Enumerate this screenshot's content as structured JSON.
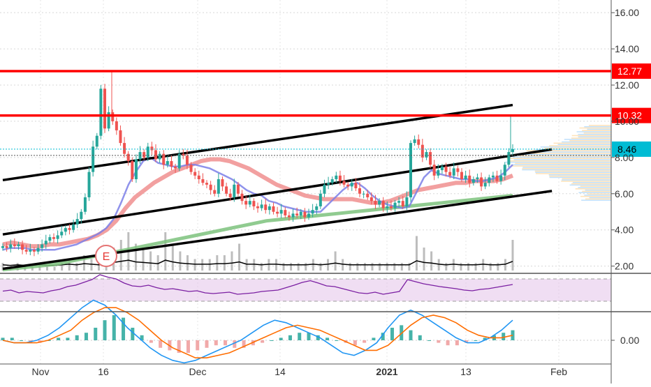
{
  "chart_data": {
    "type": "candlestick",
    "title": "",
    "colors": {
      "up": "#26a69a",
      "down": "#ef5350",
      "resistance": "#ff0000",
      "channel": "#000000",
      "ma_fast": "#7b7fe8",
      "ma_mid": "#f08f8f",
      "ma_slow": "#7dc27d",
      "rsi": "#7b1fa2",
      "rsi_band": "#e1bee7",
      "macd": "#2196f3",
      "signal": "#ff6d00",
      "last_price_tag": "#00bcd4",
      "level_tag": "#ff0000"
    },
    "price_axis": {
      "ticks": [
        "16.00",
        "14.00",
        "12.00",
        "10.00",
        "8.00",
        "6.00",
        "4.00",
        "2.00"
      ],
      "range": [
        1.6,
        16.7
      ]
    },
    "macd_axis": {
      "ticks": [
        "0.00"
      ]
    },
    "x_axis": {
      "labels": [
        "Nov",
        "16",
        "Dec",
        "14",
        "2021",
        "13",
        "Feb"
      ]
    },
    "levels": [
      {
        "label": "12.77",
        "value": 12.77
      },
      {
        "label": "10.32",
        "value": 10.32
      }
    ],
    "last_price": {
      "label": "8.46",
      "value": 8.46
    },
    "earnings_marker": {
      "label": "E",
      "date_index": 23
    },
    "channel_lines": [
      {
        "name": "upper",
        "points": [
          [
            0,
            6.75
          ],
          [
            130,
            10.9
          ]
        ]
      },
      {
        "name": "middle",
        "points": [
          [
            0,
            3.75
          ],
          [
            140,
            8.45
          ]
        ]
      },
      {
        "name": "lower",
        "points": [
          [
            0,
            1.85
          ],
          [
            140,
            6.15
          ]
        ]
      }
    ],
    "candles_close": [
      3.1,
      3.0,
      3.2,
      3.1,
      3.2,
      2.9,
      2.8,
      2.9,
      2.8,
      3.0,
      3.2,
      3.4,
      3.6,
      3.5,
      3.7,
      3.9,
      4.1,
      4.0,
      4.3,
      4.6,
      5.0,
      5.8,
      7.2,
      8.6,
      9.2,
      11.8,
      9.6,
      10.5,
      10.0,
      9.5,
      8.8,
      8.2,
      7.8,
      6.8,
      7.9,
      8.3,
      8.0,
      8.6,
      8.4,
      7.9,
      8.2,
      7.6,
      7.8,
      7.5,
      7.4,
      8.2,
      8.1,
      7.6,
      7.2,
      7.0,
      6.8,
      6.6,
      6.5,
      6.2,
      6.0,
      6.8,
      6.4,
      6.0,
      5.8,
      6.5,
      6.0,
      5.6,
      5.4,
      5.6,
      5.3,
      5.2,
      5.4,
      5.1,
      5.3,
      5.0,
      4.9,
      5.1,
      4.8,
      4.7,
      4.9,
      4.8,
      5.0,
      4.7,
      4.9,
      5.1,
      5.3,
      6.0,
      6.5,
      6.6,
      6.8,
      7.0,
      6.7,
      6.5,
      6.4,
      6.6,
      6.3,
      6.0,
      6.0,
      5.8,
      5.6,
      5.4,
      5.6,
      5.2,
      5.3,
      5.2,
      5.5,
      5.6,
      5.3,
      5.8,
      8.8,
      9.0,
      8.7,
      8.0,
      8.3,
      7.6,
      7.0,
      7.3,
      7.5,
      7.2,
      7.0,
      7.4,
      7.2,
      6.8,
      7.0,
      6.6,
      6.8,
      6.9,
      6.4,
      6.6,
      6.9,
      7.0,
      6.7,
      7.0,
      7.6,
      8.3,
      8.46
    ],
    "ma_fast": [
      2.9,
      3.0,
      3.0,
      3.0,
      2.9,
      2.9,
      2.9,
      2.9,
      3.0,
      3.1,
      3.2,
      3.4,
      3.6,
      3.8,
      4.1,
      4.6,
      5.5,
      6.5,
      7.2,
      7.8,
      8.0,
      7.7,
      7.6,
      7.5,
      7.5,
      7.6,
      7.6,
      7.5,
      7.4,
      7.2,
      7.0,
      6.8,
      6.5,
      6.2,
      6.0,
      5.9,
      5.6,
      5.5,
      5.3,
      5.2,
      5.1,
      5.0,
      5.0,
      5.0,
      5.4,
      5.8,
      6.2,
      6.5,
      6.6,
      6.3,
      5.9,
      5.6,
      5.4,
      5.3,
      5.2,
      5.3,
      6.1,
      6.9,
      7.3,
      7.1,
      7.0,
      6.9,
      6.8,
      6.8,
      6.7,
      6.7,
      6.8,
      6.9,
      7.2,
      7.6
    ],
    "ma_mid": [
      3.2,
      3.3,
      3.2,
      3.1,
      3.1,
      3.2,
      3.2,
      3.3,
      3.4,
      3.5,
      3.7,
      4.0,
      4.5,
      5.2,
      5.8,
      6.2,
      6.6,
      6.9,
      7.2,
      7.4,
      7.6,
      7.8,
      7.9,
      7.9,
      7.8,
      7.6,
      7.4,
      7.1,
      6.8,
      6.5,
      6.3,
      6.1,
      5.9,
      5.8,
      5.7,
      5.7,
      5.7,
      5.7,
      5.6,
      5.5,
      5.5,
      5.6,
      5.8,
      6.0,
      6.2,
      6.3,
      6.4,
      6.5,
      6.6,
      6.6,
      6.7,
      6.7,
      6.7,
      6.8,
      7.0
    ],
    "ma_slow": [
      1.8,
      1.9,
      2.0,
      2.1,
      2.3,
      2.5,
      2.7,
      2.9,
      3.1,
      3.3,
      3.5,
      3.7,
      3.9,
      4.1,
      4.3,
      4.5,
      4.6,
      4.7,
      4.8,
      4.9,
      5.0,
      5.1,
      5.2,
      5.3,
      5.4,
      5.5,
      5.6,
      5.7,
      5.8,
      5.9
    ],
    "volume": [
      0.2,
      0.1,
      0.2,
      0.1,
      0.1,
      0.2,
      0.1,
      0.1,
      0.2,
      0.3,
      0.2,
      0.4,
      0.3,
      0.2,
      0.5,
      0.6,
      0.8,
      1.0,
      0.7,
      0.6,
      0.5,
      0.4,
      1.0,
      0.7,
      0.5,
      0.4,
      0.3,
      0.3,
      0.3,
      0.4,
      0.4,
      0.5,
      0.7,
      0.3,
      0.3,
      0.2,
      0.3,
      0.3,
      0.2,
      0.2,
      0.2,
      0.2,
      0.3,
      0.2,
      0.3,
      0.5,
      0.3,
      0.2,
      0.2,
      0.2,
      0.2,
      0.2,
      0.2,
      0.2,
      0.2,
      0.2,
      0.9,
      0.6,
      0.5,
      0.3,
      0.2,
      0.3,
      0.2,
      0.2,
      0.2,
      0.3,
      0.2,
      0.2,
      0.3,
      0.8
    ],
    "rsi": [
      0.45,
      0.48,
      0.4,
      0.44,
      0.42,
      0.4,
      0.46,
      0.5,
      0.58,
      0.62,
      0.7,
      0.78,
      0.92,
      0.85,
      0.8,
      0.68,
      0.6,
      0.58,
      0.62,
      0.55,
      0.5,
      0.52,
      0.48,
      0.44,
      0.46,
      0.4,
      0.38,
      0.4,
      0.42,
      0.36,
      0.38,
      0.4,
      0.44,
      0.46,
      0.48,
      0.55,
      0.62,
      0.7,
      0.75,
      0.68,
      0.6,
      0.58,
      0.52,
      0.46,
      0.4,
      0.38,
      0.42,
      0.36,
      0.4,
      0.44,
      0.78,
      0.72,
      0.66,
      0.62,
      0.58,
      0.55,
      0.52,
      0.48,
      0.46,
      0.5,
      0.52,
      0.56,
      0.6,
      0.64
    ],
    "macd_hist": [
      0.1,
      0.1,
      0.0,
      -0.1,
      -0.1,
      0.0,
      0.1,
      0.1,
      0.2,
      0.3,
      0.5,
      0.8,
      1.0,
      0.9,
      0.5,
      0.2,
      -0.1,
      -0.3,
      -0.4,
      -0.5,
      -0.5,
      -0.4,
      -0.3,
      -0.2,
      -0.2,
      -0.3,
      -0.3,
      -0.2,
      -0.1,
      0.0,
      0.1,
      0.2,
      0.3,
      0.3,
      0.2,
      0.1,
      0.0,
      -0.1,
      -0.2,
      -0.1,
      0.1,
      0.3,
      0.5,
      0.6,
      0.4,
      0.2,
      0.0,
      -0.1,
      -0.2,
      -0.2,
      -0.1,
      0.0,
      0.1,
      0.2,
      0.3,
      0.4
    ],
    "macd_line": [
      0.0,
      -0.1,
      -0.1,
      0.0,
      0.2,
      0.5,
      0.9,
      1.3,
      1.6,
      1.4,
      1.0,
      0.5,
      0.1,
      -0.3,
      -0.6,
      -0.8,
      -0.9,
      -0.8,
      -0.6,
      -0.4,
      -0.2,
      0.0,
      0.3,
      0.6,
      0.8,
      0.7,
      0.5,
      0.3,
      0.1,
      -0.2,
      -0.5,
      -0.6,
      -0.4,
      -0.1,
      0.5,
      1.0,
      1.2,
      1.0,
      0.7,
      0.4,
      0.1,
      -0.1,
      -0.1,
      0.1,
      0.4,
      0.8
    ],
    "signal_line": [
      0.0,
      -0.1,
      -0.1,
      -0.1,
      0.0,
      0.2,
      0.4,
      0.8,
      1.1,
      1.3,
      1.3,
      1.1,
      0.8,
      0.4,
      0.0,
      -0.3,
      -0.5,
      -0.7,
      -0.7,
      -0.6,
      -0.5,
      -0.3,
      -0.1,
      0.1,
      0.3,
      0.5,
      0.6,
      0.5,
      0.4,
      0.2,
      0.0,
      -0.2,
      -0.4,
      -0.4,
      -0.2,
      0.2,
      0.6,
      0.9,
      1.0,
      0.9,
      0.7,
      0.4,
      0.2,
      0.1,
      0.1,
      0.2
    ]
  }
}
